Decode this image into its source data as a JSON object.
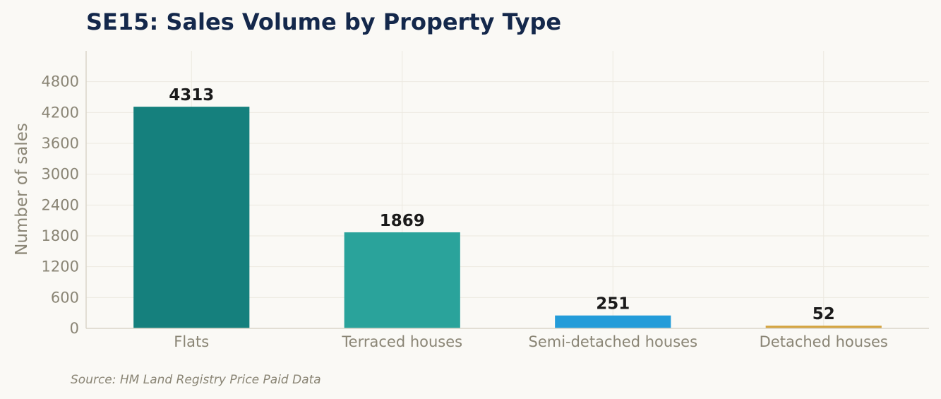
{
  "chart_data": {
    "type": "bar",
    "title": "SE15: Sales Volume by Property Type",
    "xlabel": "",
    "ylabel": "Number of sales",
    "categories": [
      "Flats",
      "Terraced houses",
      "Semi-detached houses",
      "Detached houses"
    ],
    "values": [
      4313,
      1869,
      251,
      52
    ],
    "data_labels": [
      "4313",
      "1869",
      "251",
      "52"
    ],
    "colors": [
      "#15807d",
      "#2aa39b",
      "#239cd9",
      "#d4a33c"
    ],
    "ylim": [
      0,
      5400
    ],
    "yticks": [
      0,
      600,
      1200,
      1800,
      2400,
      3000,
      3600,
      4200,
      4800
    ],
    "ytick_labels": [
      "0",
      "600",
      "1200",
      "1800",
      "2400",
      "3000",
      "3600",
      "4200",
      "4800"
    ],
    "grid": true,
    "legend": "none"
  },
  "source": "Source: HM Land Registry Price Paid Data"
}
